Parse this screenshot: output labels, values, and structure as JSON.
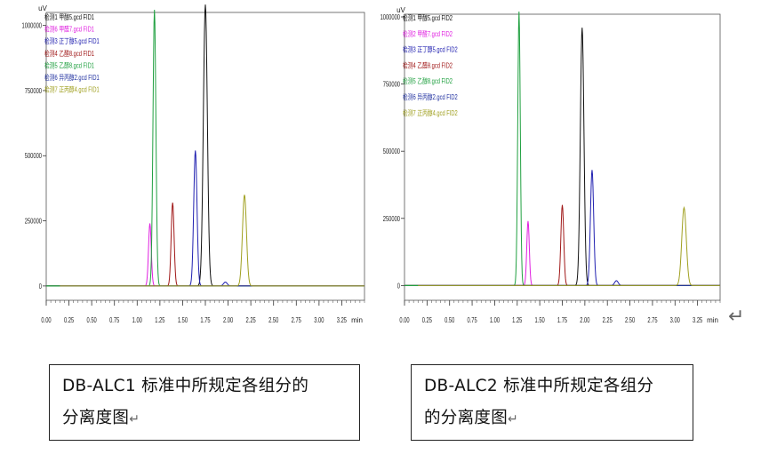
{
  "chart_data": [
    {
      "type": "line",
      "id": "left",
      "y_unit": "uV",
      "x_unit": "min",
      "xlim": [
        0,
        3.5
      ],
      "ylim": [
        -55000,
        1050000
      ],
      "x_ticks": [
        "0.00",
        "0.25",
        "0.50",
        "0.75",
        "1.00",
        "1.25",
        "1.50",
        "1.75",
        "2.00",
        "2.25",
        "2.50",
        "2.75",
        "3.00",
        "3.25"
      ],
      "y_ticks": [
        {
          "value": 0,
          "label": "0"
        },
        {
          "value": 250000,
          "label": "250000"
        },
        {
          "value": 500000,
          "label": "500000"
        },
        {
          "value": 750000,
          "label": "750000"
        },
        {
          "value": 1000000,
          "label": "1000000"
        }
      ],
      "series": [
        {
          "name": "检测1 甲醇5.gcd FID1",
          "color": "#111111",
          "peaks": [
            {
              "x": 1.75,
              "y": 1080000,
              "w": 0.022
            }
          ]
        },
        {
          "name": "检测6 甲醛7.gcd FID1",
          "color": "#e020e0",
          "peaks": [
            {
              "x": 1.14,
              "y": 240000,
              "w": 0.015
            }
          ]
        },
        {
          "name": "检测3 正丁醇5.gcd FID1",
          "color": "#2020b0",
          "peaks": [
            {
              "x": 1.64,
              "y": 520000,
              "w": 0.018
            },
            {
              "x": 1.97,
              "y": 15000,
              "w": 0.02
            }
          ]
        },
        {
          "name": "检测4 乙醛8.gcd FID1",
          "color": "#a01818",
          "peaks": [
            {
              "x": 1.39,
              "y": 320000,
              "w": 0.016
            }
          ]
        },
        {
          "name": "检测5 乙醇8.gcd FID1",
          "color": "#20a040",
          "peaks": [
            {
              "x": 1.19,
              "y": 1060000,
              "w": 0.016
            }
          ]
        },
        {
          "name": "检测6 异丙醇2.gcd FID1",
          "color": "#2030a0",
          "peaks": [
            {
              "x": 1.62,
              "y": 0,
              "w": 0.02
            }
          ]
        },
        {
          "name": "检测7 正丙醇4.gcd FID1",
          "color": "#a0a020",
          "peaks": [
            {
              "x": 2.18,
              "y": 350000,
              "w": 0.022
            }
          ]
        }
      ]
    },
    {
      "type": "line",
      "id": "right",
      "y_unit": "uV",
      "x_unit": "min",
      "xlim": [
        0,
        3.5
      ],
      "ylim": [
        -55000,
        1010000
      ],
      "x_ticks": [
        "0.00",
        "0.25",
        "0.50",
        "0.75",
        "1.00",
        "1.25",
        "1.50",
        "1.75",
        "2.00",
        "2.25",
        "2.50",
        "2.75",
        "3.00",
        "3.25"
      ],
      "y_ticks": [
        {
          "value": 0,
          "label": "0"
        },
        {
          "value": 250000,
          "label": "250000"
        },
        {
          "value": 500000,
          "label": "500000"
        },
        {
          "value": 750000,
          "label": "750000"
        },
        {
          "value": 1000000,
          "label": "1000000"
        }
      ],
      "series": [
        {
          "name": "检测1 甲醇5.gcd FID2",
          "color": "#111111",
          "peaks": [
            {
              "x": 1.97,
              "y": 960000,
              "w": 0.02
            }
          ]
        },
        {
          "name": "检测2 甲醛7.gcd FID2",
          "color": "#e020e0",
          "peaks": [
            {
              "x": 1.37,
              "y": 240000,
              "w": 0.014
            }
          ]
        },
        {
          "name": "检测3 正丁醇5.gcd FID2",
          "color": "#2020b0",
          "peaks": [
            {
              "x": 2.08,
              "y": 430000,
              "w": 0.018
            },
            {
              "x": 2.35,
              "y": 18000,
              "w": 0.02
            }
          ]
        },
        {
          "name": "检测4 乙醛8.gcd FID2",
          "color": "#a01818",
          "peaks": [
            {
              "x": 1.75,
              "y": 300000,
              "w": 0.016
            }
          ]
        },
        {
          "name": "检测5 乙醇8.gcd FID2",
          "color": "#20a040",
          "peaks": [
            {
              "x": 1.27,
              "y": 1020000,
              "w": 0.014
            }
          ]
        },
        {
          "name": "检测6 异丙醇2.gcd FID2",
          "color": "#2030a0",
          "peaks": [
            {
              "x": 1.95,
              "y": 0,
              "w": 0.02
            }
          ]
        },
        {
          "name": "检测7 正丙醇4.gcd FID2",
          "color": "#a0a020",
          "peaks": [
            {
              "x": 3.1,
              "y": 290000,
              "w": 0.025
            }
          ]
        }
      ]
    }
  ],
  "captions": {
    "left_line1": "DB-ALC1 标准中所规定各组分的",
    "left_line2": "分离度图",
    "right_line1": "DB-ALC2  标准中所规定各组分",
    "right_line2": "的分离度图",
    "return_mark": "↵",
    "page_return_mark": "↵"
  }
}
